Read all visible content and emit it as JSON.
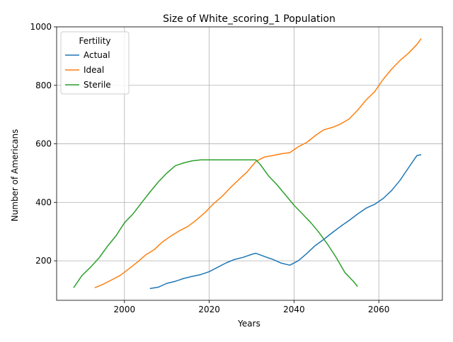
{
  "chart_data": {
    "type": "line",
    "title": "Size of White_scoring_1 Population",
    "xlabel": "Years",
    "ylabel": "Number of Americans",
    "xlim": [
      1984,
      2075
    ],
    "ylim": [
      65,
      1000
    ],
    "xticks": [
      2000,
      2020,
      2040,
      2060
    ],
    "yticks": [
      200,
      400,
      600,
      800,
      1000
    ],
    "grid": true,
    "legend": {
      "title": "Fertility",
      "placement": "top-left"
    },
    "series": [
      {
        "name": "Actual",
        "color": "#1f77b4",
        "x": [
          2006,
          2008,
          2010,
          2012,
          2014,
          2016,
          2018,
          2020,
          2022,
          2024,
          2026,
          2028,
          2030,
          2031,
          2033,
          2035,
          2037,
          2039,
          2041,
          2043,
          2045,
          2047,
          2049,
          2051,
          2053,
          2055,
          2057,
          2059,
          2061,
          2063,
          2065,
          2067,
          2069,
          2070
        ],
        "y": [
          105,
          110,
          123,
          130,
          140,
          147,
          153,
          163,
          178,
          193,
          205,
          212,
          222,
          226,
          215,
          205,
          192,
          185,
          200,
          225,
          252,
          273,
          296,
          318,
          338,
          360,
          380,
          393,
          413,
          440,
          475,
          518,
          560,
          563
        ]
      },
      {
        "name": "Ideal",
        "color": "#ff7f0e",
        "x": [
          1993,
          1995,
          1997,
          1999,
          2001,
          2003,
          2005,
          2007,
          2009,
          2011,
          2013,
          2015,
          2017,
          2019,
          2021,
          2023,
          2025,
          2027,
          2029,
          2031,
          2033,
          2035,
          2037,
          2039,
          2041,
          2043,
          2045,
          2047,
          2049,
          2051,
          2053,
          2055,
          2057,
          2059,
          2061,
          2063,
          2065,
          2067,
          2069,
          2070
        ],
        "y": [
          108,
          120,
          135,
          150,
          172,
          195,
          220,
          238,
          265,
          285,
          303,
          318,
          340,
          365,
          395,
          420,
          450,
          478,
          505,
          540,
          555,
          560,
          566,
          570,
          590,
          605,
          628,
          648,
          656,
          668,
          685,
          715,
          750,
          778,
          820,
          855,
          885,
          910,
          940,
          960
        ]
      },
      {
        "name": "Sterile",
        "color": "#2ca02c",
        "x": [
          1988,
          1990,
          1992,
          1994,
          1996,
          1998,
          2000,
          2002,
          2004,
          2006,
          2008,
          2010,
          2012,
          2014,
          2016,
          2018,
          2020,
          2022,
          2024,
          2026,
          2028,
          2030,
          2031,
          2032,
          2034,
          2036,
          2038,
          2040,
          2042,
          2044,
          2046,
          2048,
          2050,
          2052,
          2054,
          2055
        ],
        "y": [
          108,
          150,
          178,
          210,
          250,
          285,
          330,
          360,
          398,
          435,
          470,
          500,
          525,
          535,
          542,
          545,
          545,
          545,
          545,
          545,
          545,
          545,
          545,
          530,
          490,
          460,
          425,
          390,
          360,
          330,
          295,
          255,
          210,
          160,
          130,
          112
        ]
      }
    ]
  }
}
